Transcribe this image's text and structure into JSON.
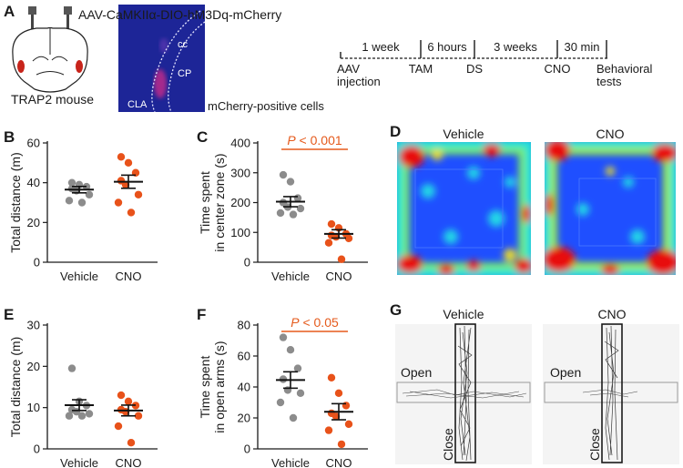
{
  "panel_a": {
    "letter": "A",
    "construct": "AAV-CaMKIIα-DIO-hM3Dq-mCherry",
    "mouse_label": "TRAP2 mouse",
    "micro_labels": {
      "cc": "cc",
      "cp": "CP",
      "cla": "CLA"
    },
    "micro_caption": "mCherry-positive cells",
    "timeline": {
      "intervals": [
        "1 week",
        "6 hours",
        "3 weeks",
        "30 min"
      ],
      "events": [
        "AAV",
        "TAM",
        "DS",
        "CNO",
        "Behavioral"
      ],
      "events_line2": [
        "injection",
        "",
        "",
        "",
        "tests"
      ]
    }
  },
  "colors": {
    "vehicle": "#8c8c8c",
    "cno": "#e8521a",
    "sig": "#e55a1c"
  },
  "chart_data": [
    {
      "panel": "B",
      "type": "scatter",
      "ylabel": "Total distance (m)",
      "ylim": [
        0,
        60
      ],
      "yticks": [
        0,
        20,
        40,
        60
      ],
      "categories": [
        "Vehicle",
        "CNO"
      ],
      "series": [
        {
          "name": "Vehicle",
          "values": [
            40,
            39,
            38,
            37,
            36,
            34,
            31,
            30
          ],
          "mean": 36.5,
          "sem": 1.6
        },
        {
          "name": "CNO",
          "values": [
            53,
            50,
            45,
            41,
            39,
            34,
            30,
            25
          ],
          "mean": 40.5,
          "sem": 3.3
        }
      ],
      "significance": ""
    },
    {
      "panel": "C",
      "type": "scatter",
      "ylabel_lines": [
        "Time spent",
        "in center zone (s)"
      ],
      "ylim": [
        0,
        400
      ],
      "yticks": [
        0,
        100,
        200,
        300,
        400
      ],
      "categories": [
        "Vehicle",
        "CNO"
      ],
      "series": [
        {
          "name": "Vehicle",
          "values": [
            293,
            270,
            215,
            200,
            185,
            180,
            165,
            160
          ],
          "mean": 203,
          "sem": 17
        },
        {
          "name": "CNO",
          "values": [
            128,
            115,
            95,
            90,
            85,
            80,
            65,
            10
          ],
          "mean": 95,
          "sem": 14
        }
      ],
      "significance": "P < 0.001"
    },
    {
      "panel": "E",
      "type": "scatter",
      "ylabel": "Total distance (m)",
      "ylim": [
        0,
        30
      ],
      "yticks": [
        0,
        10,
        20,
        30
      ],
      "categories": [
        "Vehicle",
        "CNO"
      ],
      "series": [
        {
          "name": "Vehicle",
          "values": [
            19.5,
            11.5,
            10.5,
            9.5,
            9,
            8.5,
            8,
            8
          ],
          "mean": 10.6,
          "sem": 1.3
        },
        {
          "name": "CNO",
          "values": [
            13,
            11.5,
            10.5,
            9.5,
            9,
            8,
            5.5,
            1.5
          ],
          "mean": 9.3,
          "sem": 1.3
        }
      ],
      "significance": ""
    },
    {
      "panel": "F",
      "type": "scatter",
      "ylabel_lines": [
        "Time spent",
        "in open arms (s)"
      ],
      "ylim": [
        0,
        80
      ],
      "yticks": [
        0,
        20,
        40,
        60,
        80
      ],
      "categories": [
        "Vehicle",
        "CNO"
      ],
      "series": [
        {
          "name": "Vehicle",
          "values": [
            72,
            64,
            52,
            45,
            38,
            36,
            30,
            20
          ],
          "mean": 44.5,
          "sem": 5.3
        },
        {
          "name": "CNO",
          "values": [
            46,
            36,
            28,
            23,
            21,
            16,
            12,
            3
          ],
          "mean": 24,
          "sem": 5.2
        }
      ],
      "significance": "P < 0.05"
    }
  ],
  "panel_d": {
    "letter": "D",
    "titles": [
      "Vehicle",
      "CNO"
    ]
  },
  "panel_g": {
    "letter": "G",
    "titles": [
      "Vehicle",
      "CNO"
    ],
    "open_label": "Open",
    "close_label": "Close"
  }
}
